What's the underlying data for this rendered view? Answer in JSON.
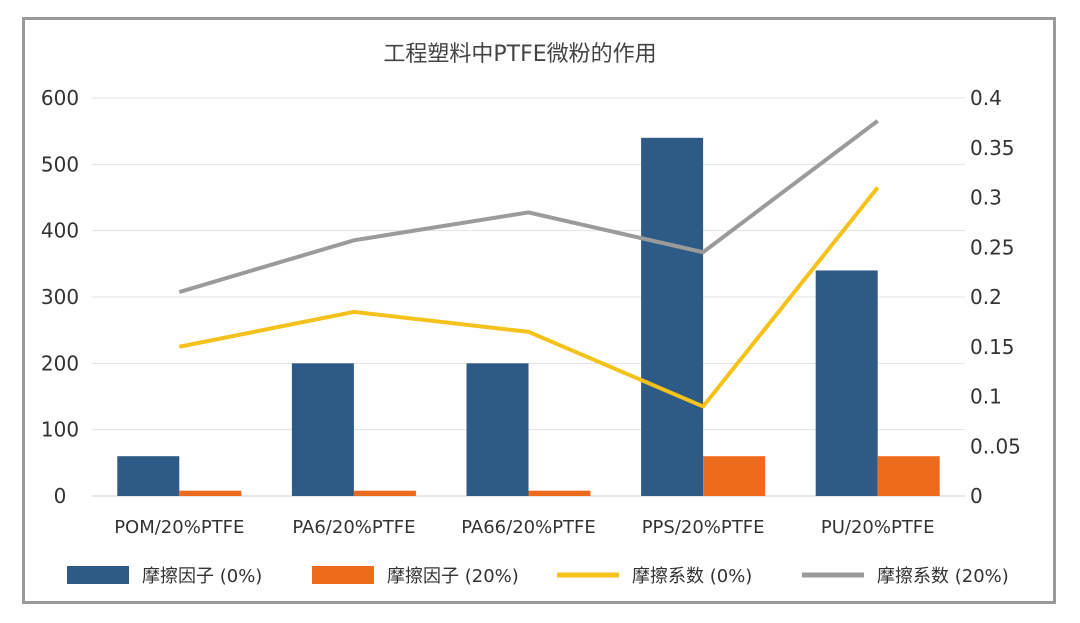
{
  "chart_data": {
    "type": "bar",
    "title": "工程塑料中PTFE微粉的作用",
    "categories": [
      "POM/20%PTFE",
      "PA6/20%PTFE",
      "PA66/20%PTFE",
      "PPS/20%PTFE",
      "PU/20%PTFE"
    ],
    "y_left": {
      "ylim": [
        0,
        600
      ],
      "ticks": [
        "0",
        "100",
        "200",
        "300",
        "400",
        "500",
        "600"
      ]
    },
    "y_right": {
      "ylim": [
        0,
        0.4
      ],
      "ticks": [
        "0",
        "0..05",
        "0.1",
        "0.15",
        "0.2",
        "0.25",
        "0.3",
        "0.35",
        "0.4"
      ]
    },
    "grid": true,
    "legend_position": "bottom",
    "series": [
      {
        "name": "摩擦因子 (0%)",
        "type": "bar",
        "axis": "left",
        "color": "#2e5a87",
        "values": [
          60,
          200,
          200,
          540,
          340
        ]
      },
      {
        "name": "摩擦因子 (20%)",
        "type": "bar",
        "axis": "left",
        "color": "#ee6a1c",
        "values": [
          8,
          8,
          8,
          60,
          60
        ]
      },
      {
        "name": "摩擦系数 (0%)",
        "type": "line",
        "axis": "right",
        "color": "#f5c21b",
        "values": [
          0.15,
          0.185,
          0.165,
          0.09,
          0.31
        ]
      },
      {
        "name": "摩擦系数 (20%)",
        "type": "line",
        "axis": "right",
        "color": "#9b9b9b",
        "values": [
          0.205,
          0.257,
          0.285,
          0.245,
          0.377
        ]
      }
    ]
  }
}
